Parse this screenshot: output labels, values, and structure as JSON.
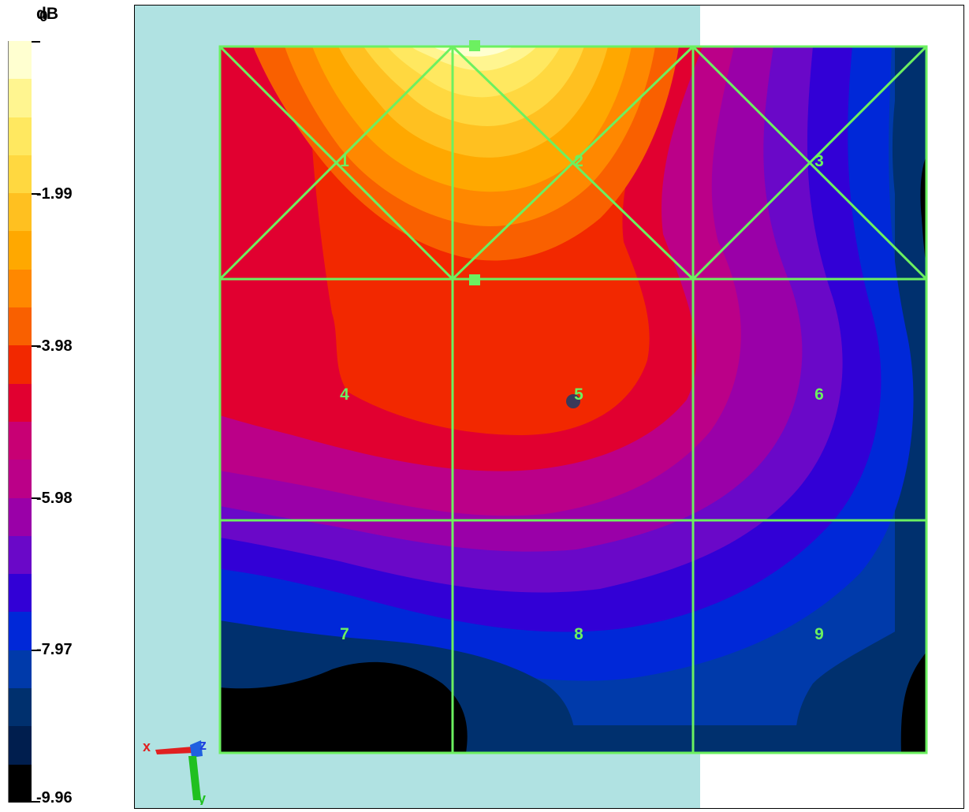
{
  "legend": {
    "unit": "dB",
    "labels": [
      "0",
      "-1.99",
      "-3.98",
      "-5.98",
      "-7.97",
      "-9.96"
    ],
    "colors": [
      "#ffffd0",
      "#fff590",
      "#ffe860",
      "#ffd840",
      "#ffc020",
      "#ffa800",
      "#ff8800",
      "#f96000",
      "#f22800",
      "#e10030",
      "#c80074",
      "#bb0088",
      "#9a00a8",
      "#6a08c8",
      "#3200d6",
      "#0028d8",
      "#003aaa",
      "#00306e",
      "#001e4e",
      "#000000"
    ]
  },
  "plot": {
    "background": "#b0e2e2",
    "grid_color": "#6cf060",
    "cells": [
      "1",
      "2",
      "3",
      "4",
      "5",
      "6",
      "7",
      "8",
      "9"
    ]
  },
  "triad": {
    "x": "x",
    "y": "y",
    "z": "z"
  }
}
